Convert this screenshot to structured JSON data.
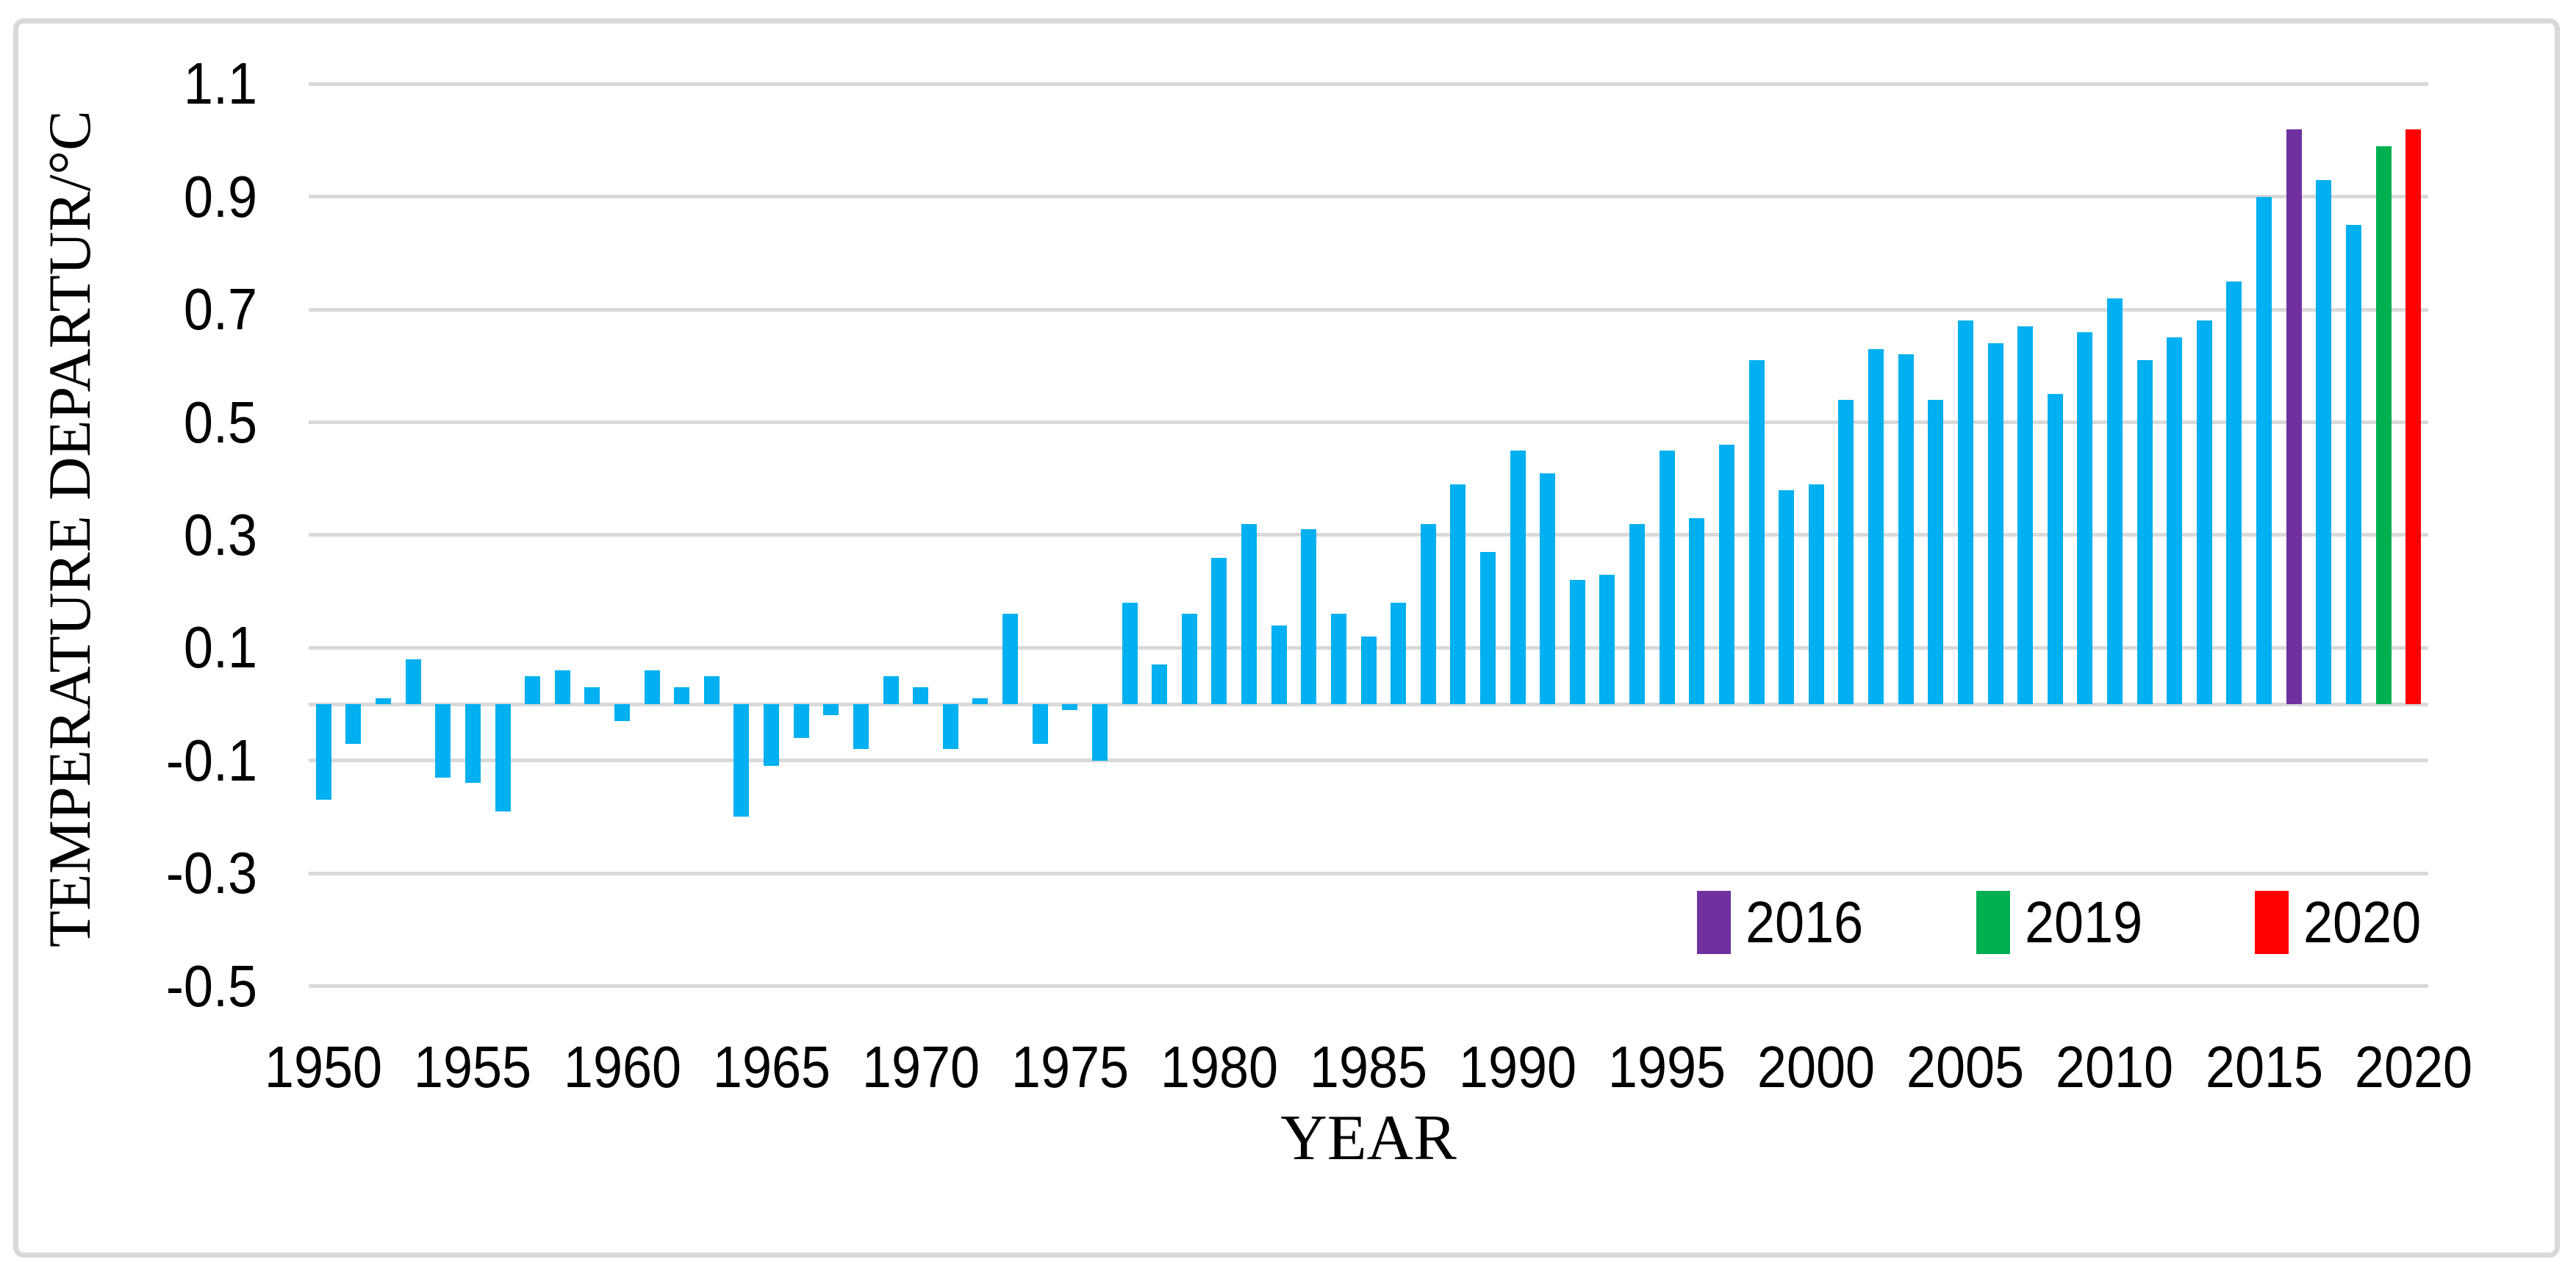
{
  "figure": {
    "background": "#FFFFFF",
    "frame_border_color": "#D9D9D9"
  },
  "chart_data": {
    "type": "bar",
    "title": "",
    "xlabel": "YEAR",
    "ylabel": "TEMPERATURE DEPARTUR/°C",
    "ylim": [
      -0.5,
      1.1
    ],
    "grid": "horizontal",
    "gridline_color": "#D9D9D9",
    "axis_line_color": "#D9D9D9",
    "bar_color_default": "#00B0F0",
    "categories": [
      1950,
      1951,
      1952,
      1953,
      1954,
      1955,
      1956,
      1957,
      1958,
      1959,
      1960,
      1961,
      1962,
      1963,
      1964,
      1965,
      1966,
      1967,
      1968,
      1969,
      1970,
      1971,
      1972,
      1973,
      1974,
      1975,
      1976,
      1977,
      1978,
      1979,
      1980,
      1981,
      1982,
      1983,
      1984,
      1985,
      1986,
      1987,
      1988,
      1989,
      1990,
      1991,
      1992,
      1993,
      1994,
      1995,
      1996,
      1997,
      1998,
      1999,
      2000,
      2001,
      2002,
      2003,
      2004,
      2005,
      2006,
      2007,
      2008,
      2009,
      2010,
      2011,
      2012,
      2013,
      2014,
      2015,
      2016,
      2017,
      2018,
      2019,
      2020
    ],
    "values": [
      -0.17,
      -0.07,
      0.01,
      0.08,
      -0.13,
      -0.14,
      -0.19,
      0.05,
      0.06,
      0.03,
      -0.03,
      0.06,
      0.03,
      0.05,
      -0.2,
      -0.11,
      -0.06,
      -0.02,
      -0.08,
      0.05,
      0.03,
      -0.08,
      0.01,
      0.16,
      -0.07,
      -0.01,
      -0.1,
      0.18,
      0.07,
      0.16,
      0.26,
      0.32,
      0.14,
      0.31,
      0.16,
      0.12,
      0.18,
      0.32,
      0.39,
      0.27,
      0.45,
      0.41,
      0.22,
      0.23,
      0.32,
      0.45,
      0.33,
      0.46,
      0.61,
      0.38,
      0.39,
      0.54,
      0.63,
      0.62,
      0.54,
      0.68,
      0.64,
      0.67,
      0.55,
      0.66,
      0.72,
      0.61,
      0.65,
      0.68,
      0.75,
      0.9,
      1.02,
      0.93,
      0.85,
      0.99,
      1.02
    ],
    "y_ticks": [
      {
        "label": "1.1",
        "value": 1.1
      },
      {
        "label": "0.9",
        "value": 0.9
      },
      {
        "label": "0.7",
        "value": 0.7
      },
      {
        "label": "0.5",
        "value": 0.5
      },
      {
        "label": "0.3",
        "value": 0.3
      },
      {
        "label": "0.1",
        "value": 0.1
      },
      {
        "label": "-0.1",
        "value": -0.1
      },
      {
        "label": "-0.3",
        "value": -0.3
      },
      {
        "label": "-0.5",
        "value": -0.5
      }
    ],
    "x_tick_labels": [
      "1950",
      "1955",
      "1960",
      "1965",
      "1970",
      "1975",
      "1980",
      "1985",
      "1990",
      "1995",
      "2000",
      "2005",
      "2010",
      "2015",
      "2020"
    ],
    "highlighted_years": {
      "2016": "#7030A0",
      "2019": "#00B050",
      "2020": "#FF0000"
    },
    "legend": {
      "position": "inside-bottom-right",
      "entries": [
        {
          "label": "2016",
          "color": "#7030A0"
        },
        {
          "label": "2019",
          "color": "#00B050"
        },
        {
          "label": "2020",
          "color": "#FF0000"
        }
      ]
    }
  }
}
